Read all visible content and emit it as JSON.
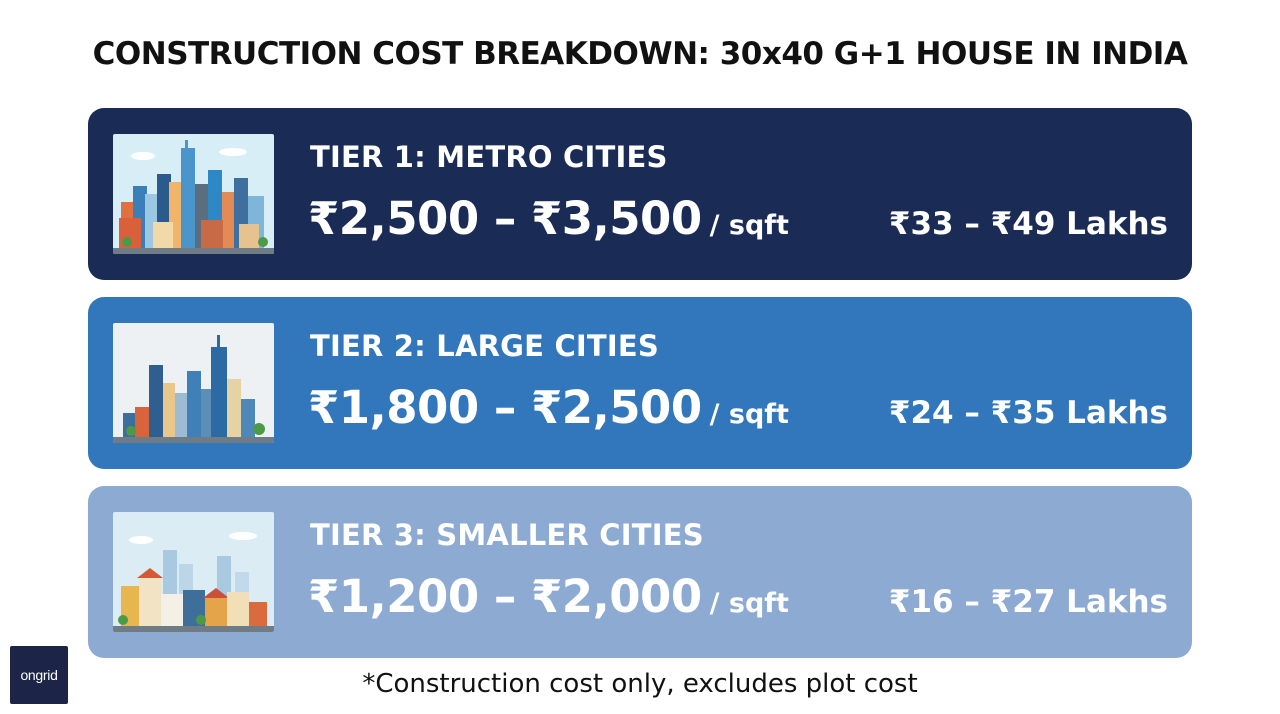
{
  "title": "CONSTRUCTION COST BREAKDOWN: 30x40 G+1 HOUSE IN INDIA",
  "tiers": [
    {
      "label": "TIER 1: METRO CITIES",
      "price_range": "₹2,500 – ₹3,500",
      "unit": "/ sqft",
      "total": "₹33 – ₹49 Lakhs",
      "background": "#1a2b56",
      "image": "metro-skyline-icon"
    },
    {
      "label": "TIER 2: LARGE CITIES",
      "price_range": "₹1,800 – ₹2,500",
      "unit": "/ sqft",
      "total": "₹24 – ₹35 Lakhs",
      "background": "#3277bb",
      "image": "large-city-skyline-icon"
    },
    {
      "label": "TIER 3: SMALLER CITIES",
      "price_range": "₹1,200 – ₹2,000",
      "unit": "/ sqft",
      "total": "₹16 – ₹27 Lakhs",
      "background": "#8dabd2",
      "image": "small-town-icon"
    }
  ],
  "footnote": "*Construction cost only, excludes plot cost",
  "logo": {
    "text": "ongrid",
    "background": "#1c2447"
  }
}
